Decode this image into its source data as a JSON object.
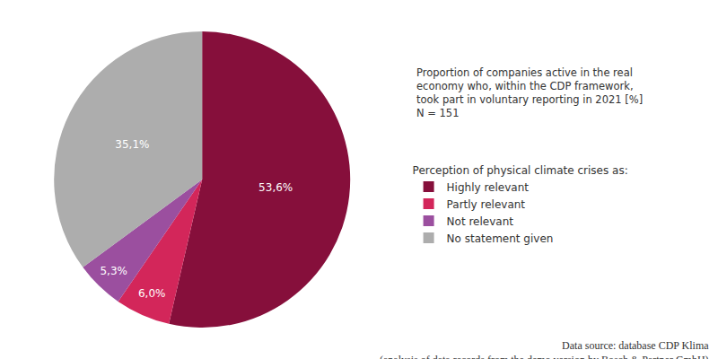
{
  "chart_data": {
    "type": "pie",
    "note": [
      "Proportion of companies active in the real",
      "economy who, within the CDP framework,",
      "took part in voluntary reporting in 2021 [%]",
      "N = 151"
    ],
    "legend_title": "Perception of physical climate crises as:",
    "categories": [
      "Highly relevant",
      "Partly relevant",
      "Not relevant",
      "No statement given"
    ],
    "values": [
      53.6,
      6.0,
      5.3,
      35.1
    ],
    "value_labels": [
      "53,6%",
      "6,0%",
      "5,3%",
      "35,1%"
    ],
    "colors": [
      "#860f3b",
      "#d3265a",
      "#9b4f9f",
      "#adadad"
    ],
    "data_labels": true,
    "legend": "right",
    "source": [
      "Data source: database CDP Klima",
      "(analysis of data records from the demo version by Bosch & Partner GmbH)"
    ]
  }
}
